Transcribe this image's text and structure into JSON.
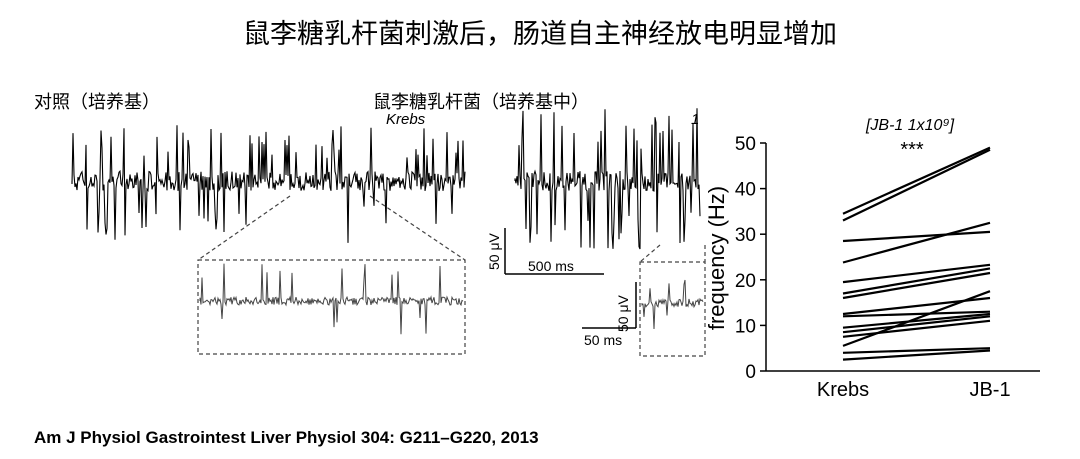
{
  "title": "鼠李糖乳杆菌刺激后，肠道自主神经放电明显增加",
  "labels": {
    "control": "对照（培养基）",
    "treated": "鼠李糖乳杆菌（培养基中）",
    "krebs": "Krebs",
    "one": "1"
  },
  "scalebars": {
    "main": {
      "v": "50 μV",
      "t": "500 ms"
    },
    "zoom": {
      "v": "50 μV",
      "t": "50 ms"
    }
  },
  "citation": "Am J Physiol Gastrointest Liver Physiol 304: G211–G220, 2013",
  "chart_data": {
    "type": "line",
    "title": "[JB-1 1x10⁹]",
    "annotation": "***",
    "ylabel": "frequency (Hz)",
    "xlabel": "",
    "categories": [
      "Krebs",
      "JB-1"
    ],
    "ylim": [
      0,
      50
    ],
    "yticks": [
      0,
      10,
      20,
      30,
      40,
      50
    ],
    "series": [
      {
        "values": [
          34.5,
          49.0
        ]
      },
      {
        "values": [
          33.0,
          48.5
        ]
      },
      {
        "values": [
          28.5,
          30.5
        ]
      },
      {
        "values": [
          23.8,
          32.5
        ]
      },
      {
        "values": [
          19.5,
          23.3
        ]
      },
      {
        "values": [
          17.0,
          22.5
        ]
      },
      {
        "values": [
          16.0,
          21.5
        ]
      },
      {
        "values": [
          12.5,
          16.0
        ]
      },
      {
        "values": [
          12.0,
          13.0
        ]
      },
      {
        "values": [
          9.5,
          12.5
        ]
      },
      {
        "values": [
          8.5,
          12.0
        ]
      },
      {
        "values": [
          7.5,
          11.0
        ]
      },
      {
        "values": [
          5.5,
          17.5
        ]
      },
      {
        "values": [
          4.0,
          5.0
        ]
      },
      {
        "values": [
          2.5,
          4.5
        ]
      }
    ]
  }
}
